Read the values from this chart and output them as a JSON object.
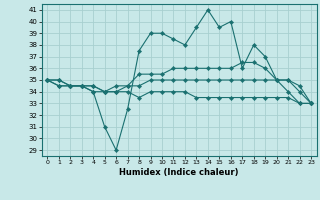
{
  "xlabel": "Humidex (Indice chaleur)",
  "background_color": "#c8e8e8",
  "grid_color": "#a8d0d0",
  "line_color": "#1a7070",
  "xlim": [
    -0.5,
    23.5
  ],
  "ylim": [
    28.5,
    41.5
  ],
  "yticks": [
    29,
    30,
    31,
    32,
    33,
    34,
    35,
    36,
    37,
    38,
    39,
    40,
    41
  ],
  "xticks": [
    0,
    1,
    2,
    3,
    4,
    5,
    6,
    7,
    8,
    9,
    10,
    11,
    12,
    13,
    14,
    15,
    16,
    17,
    18,
    19,
    20,
    21,
    22,
    23
  ],
  "series": [
    [
      35,
      35,
      34.5,
      34.5,
      34,
      31,
      29,
      32.5,
      37.5,
      39,
      39,
      38.5,
      38,
      39.5,
      41,
      39.5,
      40,
      36,
      38,
      37,
      35,
      34,
      33,
      33
    ],
    [
      35,
      34.5,
      34.5,
      34.5,
      34.5,
      34,
      34,
      34.5,
      35.5,
      35.5,
      35.5,
      36,
      36,
      36,
      36,
      36,
      36,
      36.5,
      36.5,
      36,
      35,
      35,
      34,
      33
    ],
    [
      35,
      34.5,
      34.5,
      34.5,
      34.5,
      34,
      34.5,
      34.5,
      34.5,
      35,
      35,
      35,
      35,
      35,
      35,
      35,
      35,
      35,
      35,
      35,
      35,
      35,
      34.5,
      33
    ],
    [
      35,
      35,
      34.5,
      34.5,
      34,
      34,
      34,
      34,
      33.5,
      34,
      34,
      34,
      34,
      33.5,
      33.5,
      33.5,
      33.5,
      33.5,
      33.5,
      33.5,
      33.5,
      33.5,
      33,
      33
    ]
  ]
}
